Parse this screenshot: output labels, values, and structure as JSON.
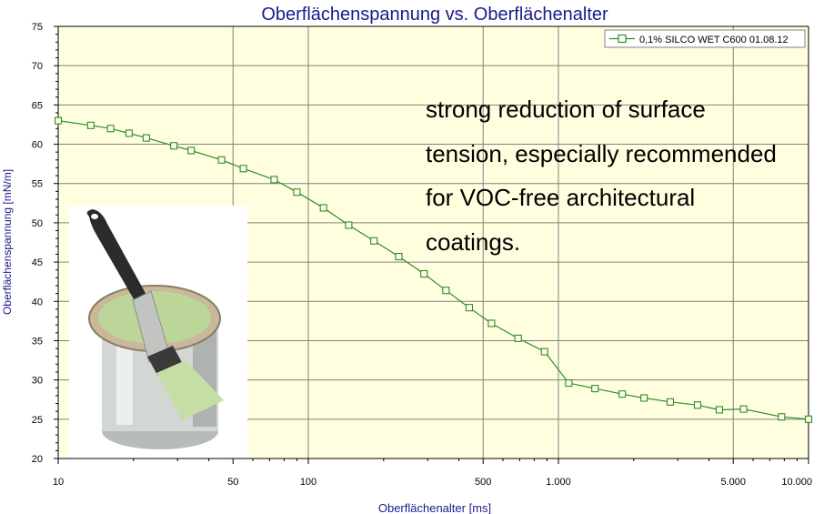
{
  "chart_data": {
    "type": "line",
    "title": "Oberflächenspannung vs. Oberflächenalter",
    "xlabel": "Oberflächenalter [ms]",
    "ylabel": "Oberflächenspannung [mN/m]",
    "x_scale": "log",
    "xlim": [
      10,
      10000
    ],
    "ylim": [
      20,
      75
    ],
    "grid": true,
    "legend_position": "top-right",
    "x_ticks": [
      {
        "value": 10,
        "label": "10"
      },
      {
        "value": 50,
        "label": "50"
      },
      {
        "value": 100,
        "label": "100"
      },
      {
        "value": 500,
        "label": "500"
      },
      {
        "value": 1000,
        "label": "1.000"
      },
      {
        "value": 5000,
        "label": "5.000"
      },
      {
        "value": 10000,
        "label": "10.000"
      }
    ],
    "y_ticks": [
      20,
      25,
      30,
      35,
      40,
      45,
      50,
      55,
      60,
      65,
      70,
      75
    ],
    "colors": {
      "plot_background": "#ffffe0",
      "series": "#2e8b2e",
      "title": "#1a1a8c",
      "axis_label": "#1a1a8c",
      "grid": "#808080"
    },
    "series": [
      {
        "name": "0,1% SILCO WET C600 01.08.12",
        "marker": "open-square",
        "x": [
          10,
          13.5,
          16.2,
          19.2,
          22.5,
          29,
          34,
          45,
          55,
          73,
          90,
          115,
          145,
          183,
          230,
          290,
          355,
          440,
          540,
          690,
          880,
          1100,
          1400,
          1800,
          2200,
          2800,
          3600,
          4400,
          5500,
          7800,
          10000
        ],
        "y": [
          63,
          62.4,
          62,
          61.4,
          60.8,
          59.8,
          59.2,
          58,
          56.9,
          55.5,
          53.9,
          51.9,
          49.7,
          47.7,
          45.7,
          43.5,
          41.4,
          39.2,
          37.2,
          35.3,
          33.6,
          29.6,
          28.9,
          28.2,
          27.7,
          27.2,
          26.8,
          26.2,
          26.3,
          25.3,
          25
        ]
      }
    ],
    "annotation_lines": [
      "strong reduction of surface",
      "tension, especially recommended",
      "for VOC-free architectural",
      "coatings."
    ]
  }
}
